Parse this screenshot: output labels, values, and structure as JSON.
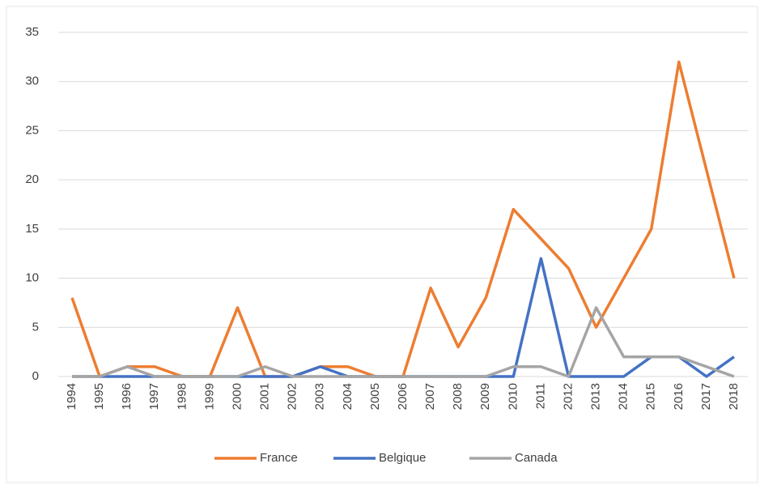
{
  "chart_data": {
    "type": "line",
    "categories": [
      "1994",
      "1995",
      "1996",
      "1997",
      "1998",
      "1999",
      "2000",
      "2001",
      "2002",
      "2003",
      "2004",
      "2005",
      "2006",
      "2007",
      "2008",
      "2009",
      "2010",
      "2011",
      "2012",
      "2013",
      "2014",
      "2015",
      "2016",
      "2017",
      "2018"
    ],
    "series": [
      {
        "name": "France",
        "color": "#ed7d31",
        "values": [
          8,
          0,
          1,
          1,
          0,
          0,
          7,
          0,
          0,
          1,
          1,
          0,
          0,
          9,
          3,
          8,
          17,
          14,
          11,
          5,
          10,
          15,
          32,
          21,
          10
        ]
      },
      {
        "name": "Belgique",
        "color": "#4472c4",
        "values": [
          0,
          0,
          0,
          0,
          0,
          0,
          0,
          0,
          0,
          1,
          0,
          0,
          0,
          0,
          0,
          0,
          0,
          12,
          0,
          0,
          0,
          2,
          2,
          0,
          2
        ]
      },
      {
        "name": "Canada",
        "color": "#a5a5a5",
        "values": [
          0,
          0,
          1,
          0,
          0,
          0,
          0,
          1,
          0,
          0,
          0,
          0,
          0,
          0,
          0,
          0,
          1,
          1,
          0,
          7,
          2,
          2,
          2,
          1,
          0
        ]
      }
    ],
    "ylim": [
      0,
      35
    ],
    "yticks": [
      0,
      5,
      10,
      15,
      20,
      25,
      30,
      35
    ],
    "grid": true,
    "legend": "bottom"
  }
}
